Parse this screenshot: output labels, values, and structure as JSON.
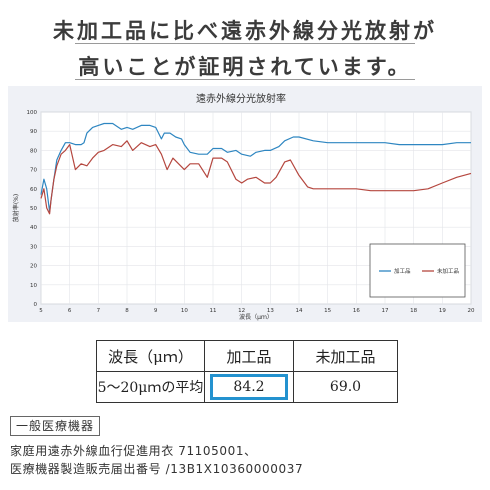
{
  "headline": {
    "line1": "未加工品に比べ遠赤外線分光放射が",
    "line2": "高いことが証明されています。"
  },
  "colors": {
    "processed": "#2e86c1",
    "unprocessed": "#b5473f",
    "highlight": "#2392cf"
  },
  "chart_data": {
    "type": "line",
    "title": "遠赤外線分光放射率",
    "xlabel": "波長（μｍ）",
    "ylabel": "放射率(%)",
    "xlim": [
      5,
      20
    ],
    "ylim": [
      0,
      100
    ],
    "xticks": [
      "5",
      "6",
      "7",
      "8",
      "9",
      "10",
      "11",
      "12",
      "13",
      "14",
      "15",
      "16",
      "17",
      "18",
      "19",
      "20"
    ],
    "yticks": [
      "0",
      "10",
      "20",
      "30",
      "40",
      "50",
      "60",
      "70",
      "80",
      "90",
      "100"
    ],
    "grid": true,
    "legend": "bottom-right",
    "series": [
      {
        "name": "加工品",
        "color_key": "processed",
        "x": [
          5.0,
          5.1,
          5.2,
          5.3,
          5.35,
          5.45,
          5.55,
          5.7,
          5.85,
          6.0,
          6.2,
          6.4,
          6.5,
          6.6,
          6.8,
          7.0,
          7.2,
          7.5,
          7.8,
          8.0,
          8.2,
          8.5,
          8.8,
          9.0,
          9.2,
          9.3,
          9.5,
          9.7,
          9.9,
          10.0,
          10.2,
          10.5,
          10.8,
          11.0,
          11.3,
          11.5,
          11.8,
          12.0,
          12.3,
          12.5,
          12.8,
          13.0,
          13.3,
          13.5,
          13.8,
          14.0,
          14.5,
          15.0,
          15.5,
          16.0,
          16.5,
          17.0,
          17.5,
          18.0,
          18.5,
          19.0,
          19.5,
          20.0
        ],
        "y": [
          57,
          65,
          60,
          48,
          54,
          65,
          75,
          80,
          84,
          84,
          83,
          83,
          84,
          89,
          92,
          93,
          94,
          94,
          91,
          92,
          91,
          93,
          93,
          92,
          86,
          89,
          89,
          87,
          86,
          83,
          79,
          78,
          78,
          81,
          81,
          79,
          80,
          78,
          77,
          79,
          80,
          80,
          82,
          85,
          87,
          87,
          85,
          84,
          84,
          84,
          84,
          84,
          83,
          83,
          83,
          83,
          84,
          84
        ]
      },
      {
        "name": "未加工品",
        "color_key": "unprocessed",
        "x": [
          5.0,
          5.1,
          5.2,
          5.3,
          5.35,
          5.45,
          5.55,
          5.7,
          5.85,
          6.0,
          6.2,
          6.4,
          6.6,
          6.8,
          7.0,
          7.2,
          7.5,
          7.8,
          8.0,
          8.2,
          8.5,
          8.8,
          9.0,
          9.2,
          9.4,
          9.6,
          9.8,
          10.0,
          10.2,
          10.5,
          10.8,
          11.0,
          11.3,
          11.5,
          11.8,
          12.0,
          12.2,
          12.5,
          12.8,
          13.0,
          13.2,
          13.5,
          13.7,
          14.0,
          14.3,
          14.5,
          15.0,
          15.5,
          16.0,
          16.5,
          17.0,
          17.5,
          18.0,
          18.5,
          19.0,
          19.5,
          20.0
        ],
        "y": [
          55,
          60,
          50,
          47,
          54,
          65,
          72,
          78,
          80,
          83,
          70,
          73,
          72,
          76,
          79,
          80,
          83,
          82,
          85,
          80,
          84,
          82,
          83,
          78,
          70,
          76,
          73,
          70,
          73,
          73,
          66,
          76,
          76,
          74,
          65,
          63,
          65,
          66,
          63,
          63,
          66,
          74,
          75,
          67,
          61,
          60,
          60,
          60,
          60,
          59,
          59,
          59,
          59,
          60,
          63,
          66,
          68
        ]
      }
    ]
  },
  "table": {
    "header": [
      "波長（μｍ）",
      "加工品",
      "未加工品"
    ],
    "row_label": "5〜20μｍの平均",
    "processed_value": "84.2",
    "unprocessed_value": "69.0"
  },
  "certification": {
    "badge": "一般医療機器",
    "line1": "家庭用遠赤外線血行促進用衣 71105001、",
    "line2": "医療機器製造販売届出番号 /13B1X10360000037"
  }
}
